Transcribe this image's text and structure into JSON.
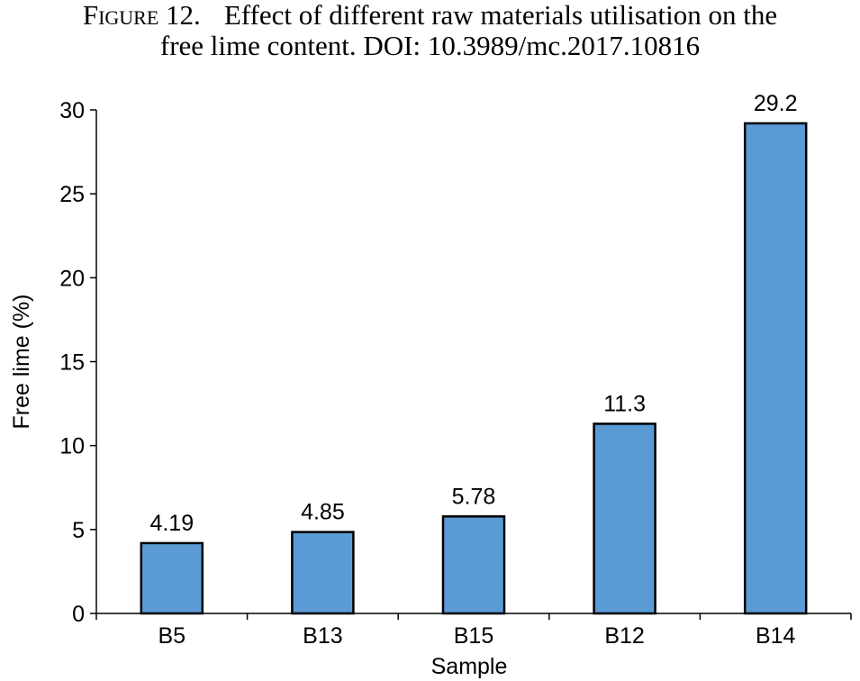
{
  "caption": {
    "figure_label": "Figure 12.",
    "line1": "Effect of different raw materials utilisation on the",
    "line2": "free lime content. DOI: 10.3989/mc.2017.10816"
  },
  "chart_data": {
    "type": "bar",
    "categories": [
      "B5",
      "B13",
      "B15",
      "B12",
      "B14"
    ],
    "values": [
      4.19,
      4.85,
      5.78,
      11.3,
      29.2
    ],
    "data_labels": [
      "4.19",
      "4.85",
      "5.78",
      "11.3",
      "29.2"
    ],
    "xlabel": "Sample",
    "ylabel": "Free lime (%)",
    "ylim": [
      0,
      30
    ],
    "yticks": [
      0,
      5,
      10,
      15,
      20,
      25,
      30
    ],
    "grid": false,
    "bar_color": "#5b9bd5",
    "bar_edge_color": "#000000"
  }
}
